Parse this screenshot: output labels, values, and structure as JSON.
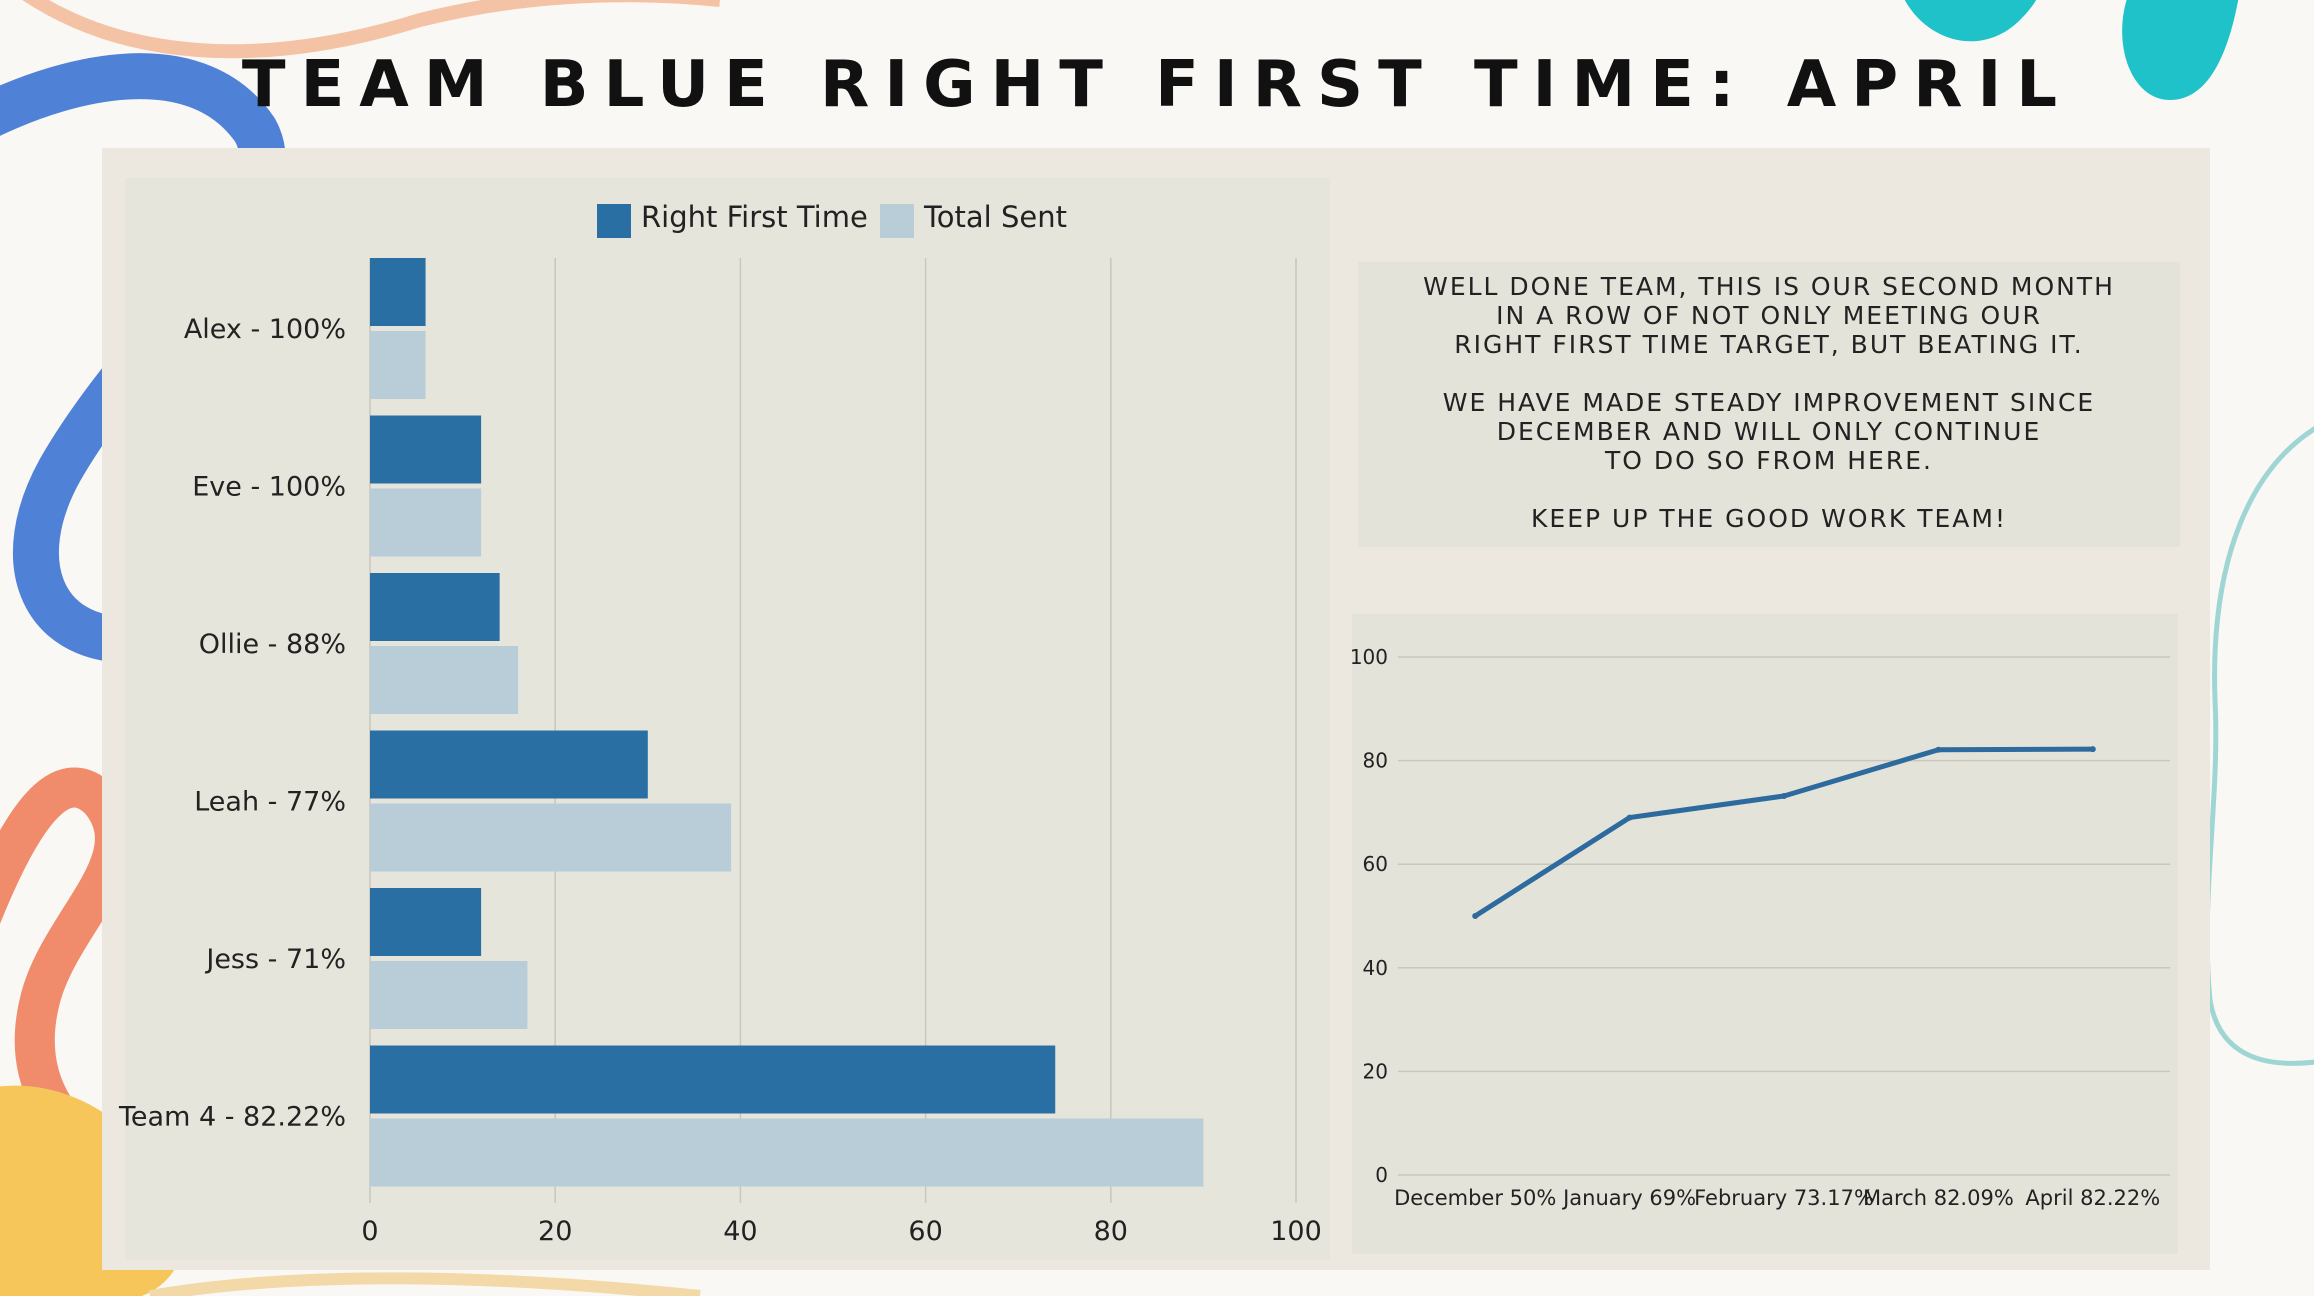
{
  "title": "TEAM BLUE RIGHT FIRST TIME: APRIL",
  "message": [
    "WELL DONE TEAM, THIS IS OUR SECOND MONTH\nIN A ROW OF NOT ONLY MEETING OUR\nRIGHT FIRST TIME TARGET, BUT BEATING IT.",
    "WE HAVE MADE STEADY IMPROVEMENT SINCE\nDECEMBER AND WILL ONLY CONTINUE\nTO DO SO FROM HERE.",
    "KEEP UP THE GOOD WORK TEAM!"
  ],
  "colors": {
    "right_first_time": "#2a6fa3",
    "total_sent": "#b8cdd8",
    "line": "#2d6b9e",
    "grid": "#c9c7bc",
    "text": "#222222"
  },
  "chart_data": [
    {
      "type": "bar",
      "orientation": "horizontal",
      "categories": [
        "Alex - 100%",
        "Eve - 100%",
        "Ollie - 88%",
        "Leah - 77%",
        "Jess - 71%",
        "Team 4 - 82.22%"
      ],
      "series": [
        {
          "name": "Right First Time",
          "values": [
            6,
            12,
            14,
            30,
            12,
            74
          ]
        },
        {
          "name": "Total Sent",
          "values": [
            6,
            12,
            16,
            39,
            17,
            90
          ]
        }
      ],
      "xlim": [
        0,
        100
      ],
      "xticks": [
        "0",
        "20",
        "40",
        "60",
        "80",
        "100"
      ],
      "grid": true,
      "legend": "top-center"
    },
    {
      "type": "line",
      "categories": [
        "December 50%",
        "January 69%",
        "February 73.17%",
        "March 82.09%",
        "April 82.22%"
      ],
      "values": [
        50,
        69,
        73.17,
        82.09,
        82.22
      ],
      "ylim": [
        0,
        100
      ],
      "yticks": [
        "0",
        "20",
        "40",
        "60",
        "80",
        "100"
      ],
      "grid": true
    }
  ]
}
